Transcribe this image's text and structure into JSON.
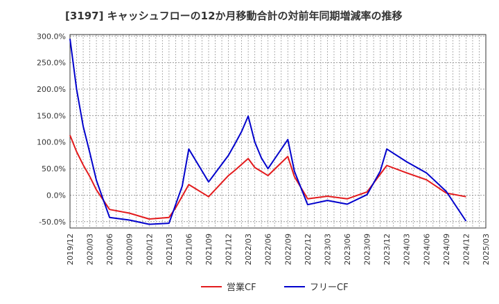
{
  "chart_data": {
    "type": "line",
    "title": "[3197]  キャッシュフローの12か月移動合計の対前年同期増減率の推移",
    "xlabel": "",
    "ylabel": "",
    "x_ticks": [
      "2019/12",
      "2020/03",
      "2020/06",
      "2020/09",
      "2020/12",
      "2021/03",
      "2021/06",
      "2021/09",
      "2021/12",
      "2022/03",
      "2022/06",
      "2022/09",
      "2022/12",
      "2023/03",
      "2023/06",
      "2023/09",
      "2023/12",
      "2024/03",
      "2024/06",
      "2024/09",
      "2024/12",
      "2025/03"
    ],
    "y_ticks": [
      "300.0%",
      "250.0%",
      "200.0%",
      "150.0%",
      "100.0%",
      "50.0%",
      "0.0%",
      "-50.0%"
    ],
    "ylim": [
      -62,
      303
    ],
    "grid": true,
    "legend_position": "bottom",
    "series": [
      {
        "name": "営業CF",
        "color": "#e31a1c",
        "points": [
          {
            "x": "2019/12",
            "y": 113
          },
          {
            "x": "2020/01",
            "y": 82
          },
          {
            "x": "2020/02",
            "y": 57
          },
          {
            "x": "2020/03",
            "y": 35
          },
          {
            "x": "2020/04",
            "y": 10
          },
          {
            "x": "2020/06",
            "y": -27
          },
          {
            "x": "2020/09",
            "y": -34
          },
          {
            "x": "2020/12",
            "y": -45
          },
          {
            "x": "2021/03",
            "y": -42
          },
          {
            "x": "2021/04",
            "y": -24
          },
          {
            "x": "2021/06",
            "y": 20
          },
          {
            "x": "2021/09",
            "y": -3
          },
          {
            "x": "2021/12",
            "y": 37
          },
          {
            "x": "2022/01",
            "y": 47
          },
          {
            "x": "2022/03",
            "y": 69
          },
          {
            "x": "2022/04",
            "y": 52
          },
          {
            "x": "2022/06",
            "y": 37
          },
          {
            "x": "2022/09",
            "y": 73
          },
          {
            "x": "2022/10",
            "y": 35
          },
          {
            "x": "2022/12",
            "y": -7
          },
          {
            "x": "2023/03",
            "y": -2
          },
          {
            "x": "2023/06",
            "y": -7
          },
          {
            "x": "2023/09",
            "y": 6
          },
          {
            "x": "2023/12",
            "y": 56
          },
          {
            "x": "2024/03",
            "y": 42
          },
          {
            "x": "2024/06",
            "y": 29
          },
          {
            "x": "2024/09",
            "y": 4
          },
          {
            "x": "2024/12",
            "y": -3
          }
        ]
      },
      {
        "name": "フリーCF",
        "color": "#0000cc",
        "points": [
          {
            "x": "2019/12",
            "y": 295
          },
          {
            "x": "2020/01",
            "y": 200
          },
          {
            "x": "2020/02",
            "y": 130
          },
          {
            "x": "2020/03",
            "y": 80
          },
          {
            "x": "2020/04",
            "y": 28
          },
          {
            "x": "2020/06",
            "y": -42
          },
          {
            "x": "2020/09",
            "y": -47
          },
          {
            "x": "2020/12",
            "y": -55
          },
          {
            "x": "2021/03",
            "y": -53
          },
          {
            "x": "2021/05",
            "y": 17
          },
          {
            "x": "2021/06",
            "y": 87
          },
          {
            "x": "2021/09",
            "y": 25
          },
          {
            "x": "2021/12",
            "y": 75
          },
          {
            "x": "2022/01",
            "y": 97
          },
          {
            "x": "2022/02",
            "y": 120
          },
          {
            "x": "2022/03",
            "y": 149
          },
          {
            "x": "2022/04",
            "y": 100
          },
          {
            "x": "2022/05",
            "y": 70
          },
          {
            "x": "2022/06",
            "y": 50
          },
          {
            "x": "2022/09",
            "y": 105
          },
          {
            "x": "2022/10",
            "y": 45
          },
          {
            "x": "2022/12",
            "y": -18
          },
          {
            "x": "2023/03",
            "y": -10
          },
          {
            "x": "2023/06",
            "y": -17
          },
          {
            "x": "2023/09",
            "y": 1
          },
          {
            "x": "2023/11",
            "y": 45
          },
          {
            "x": "2023/12",
            "y": 87
          },
          {
            "x": "2024/03",
            "y": 63
          },
          {
            "x": "2024/06",
            "y": 42
          },
          {
            "x": "2024/09",
            "y": 7
          },
          {
            "x": "2024/12",
            "y": -49
          }
        ]
      }
    ]
  }
}
